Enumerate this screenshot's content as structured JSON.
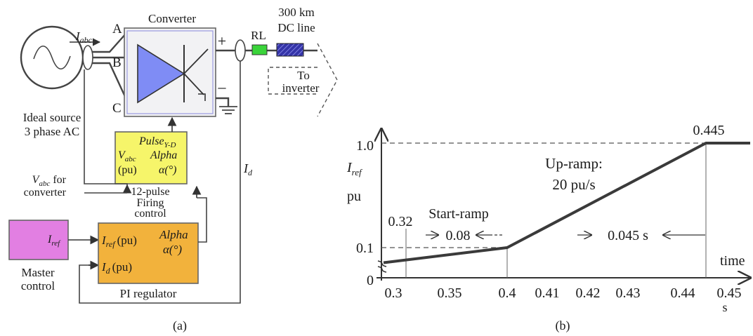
{
  "panel_a": {
    "caption": "(a)",
    "converter_title": "Converter",
    "phase_a": "A",
    "phase_b": "B",
    "phase_c": "C",
    "plus_sign": "+",
    "minus_sign": "–",
    "i_abc_base": "I",
    "i_abc_sub": "abc",
    "dc_line_top": "300 km",
    "dc_line_bottom": "DC line",
    "rl_label": "RL",
    "to_inverter_line1": "To",
    "to_inverter_line2": "inverter",
    "source_label_line1": "Ideal source",
    "source_label_line2": "3 phase AC",
    "firing_block": {
      "pulse_base": "Pulse",
      "pulse_sub": "Y-D",
      "vabc_base": "V",
      "vabc_sub": "abc",
      "pu": "(pu)",
      "alpha": "Alpha",
      "alpha_deg": "α(°)",
      "caption_line1": "12-pulse",
      "caption_line2": "Firing",
      "caption_line3": "control"
    },
    "vabc_for_base": "V",
    "vabc_for_sub": "abc",
    "vabc_for_rest": "for",
    "vabc_for_line2": "converter",
    "id_label_base": "I",
    "id_label_sub": "d",
    "master": {
      "iref_base": "I",
      "iref_sub": "ref",
      "caption_line1": "Master",
      "caption_line2": "control"
    },
    "pi_block": {
      "iref_base": "I",
      "iref_sub": "ref",
      "iref_pu": "(pu)",
      "id_base": "I",
      "id_sub": "d",
      "id_pu": "(pu)",
      "alpha": "Alpha",
      "alpha_deg": "α(°)",
      "caption": "PI regulator"
    },
    "colors": {
      "converter_fill": "#7f8cf5",
      "firing_fill": "#f6f56a",
      "master_fill": "#e27fe2",
      "pi_fill": "#f2b23c",
      "rl_fill": "#3ad43a",
      "dcline_fill": "#3434a8"
    }
  },
  "panel_b": {
    "caption": "(b)",
    "y_axis_base": "I",
    "y_axis_sub": "ref",
    "y_axis_unit": "pu",
    "x_axis_title": "time",
    "x_axis_unit": "s",
    "y_tick_1": "1.0",
    "y_tick_01": "0.1",
    "y_tick_0": "0",
    "x_ticks": [
      "0.3",
      "0.35",
      "0.4",
      "0.41",
      "0.42",
      "0.43",
      "0.44",
      "0.45"
    ],
    "label_0445": "0.445",
    "label_032": "0.32",
    "start_ramp": "Start-ramp",
    "dur_008": "0.08",
    "dur_0045": "0.045 s",
    "up_ramp_line1": "Up-ramp:",
    "up_ramp_line2": "20 pu/s"
  },
  "chart_data": {
    "type": "line",
    "x": [
      0.3,
      0.4,
      0.445,
      0.45
    ],
    "values": [
      0.05,
      0.1,
      1.0,
      1.0
    ],
    "xlabel": "time s",
    "ylabel": "Iref pu",
    "x_ticks": [
      0.3,
      0.35,
      0.4,
      0.41,
      0.42,
      0.43,
      0.44,
      0.45
    ],
    "y_ticks": [
      0,
      0.1,
      1.0
    ],
    "annotations": [
      "Start-ramp",
      "Up-ramp: 20 pu/s",
      "0.445",
      "0.32",
      "0.08",
      "0.045 s"
    ],
    "grid": false
  }
}
